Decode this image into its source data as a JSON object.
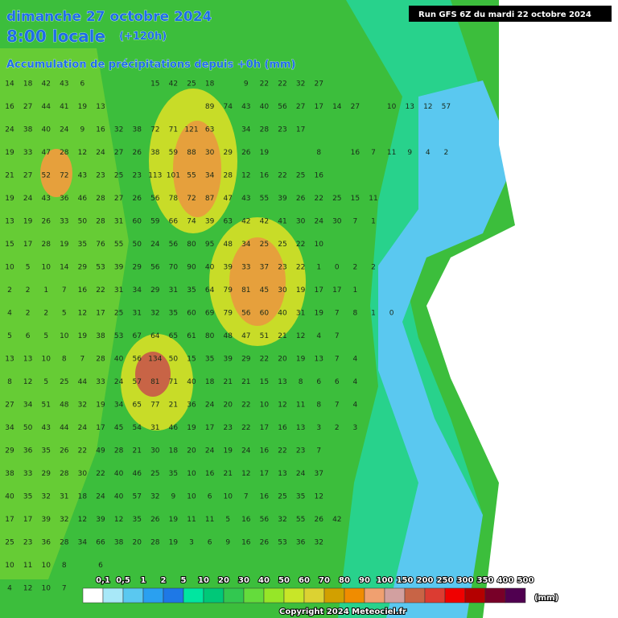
{
  "header": {
    "date": "dimanche 27 octobre 2024",
    "time": "8:00 locale",
    "lead": "(+120h)",
    "subtitle": "Accumulation de précipitations depuis +0h (mm)",
    "run": "Run GFS 6Z du mardi 22 octobre 2024"
  },
  "grid": {
    "rows": [
      [
        14,
        18,
        42,
        43,
        6,
        null,
        null,
        null,
        15,
        42,
        25,
        18,
        null,
        9,
        22,
        22,
        32,
        27
      ],
      [
        16,
        27,
        44,
        41,
        19,
        13,
        null,
        null,
        null,
        null,
        null,
        89,
        74,
        43,
        40,
        56,
        27,
        17,
        14,
        27,
        null,
        10,
        13,
        12,
        57
      ],
      [
        24,
        38,
        40,
        24,
        9,
        16,
        32,
        38,
        72,
        71,
        121,
        63,
        null,
        34,
        28,
        23,
        17
      ],
      [
        19,
        33,
        47,
        28,
        12,
        24,
        27,
        26,
        38,
        59,
        88,
        30,
        29,
        26,
        19,
        null,
        null,
        8,
        null,
        16,
        7,
        11,
        9,
        4,
        2
      ],
      [
        21,
        27,
        52,
        72,
        43,
        23,
        25,
        23,
        113,
        101,
        55,
        34,
        28,
        12,
        16,
        22,
        25,
        16
      ],
      [
        19,
        24,
        43,
        36,
        46,
        28,
        27,
        26,
        56,
        78,
        72,
        87,
        47,
        43,
        55,
        39,
        26,
        22,
        25,
        15,
        11
      ],
      [
        13,
        19,
        26,
        33,
        50,
        28,
        31,
        60,
        59,
        66,
        74,
        39,
        63,
        42,
        42,
        41,
        30,
        24,
        30,
        7,
        1
      ],
      [
        15,
        17,
        28,
        19,
        35,
        76,
        55,
        50,
        24,
        56,
        80,
        95,
        48,
        34,
        25,
        25,
        22,
        10
      ],
      [
        10,
        5,
        10,
        14,
        29,
        53,
        39,
        29,
        56,
        70,
        90,
        40,
        39,
        33,
        37,
        23,
        22,
        1,
        0,
        2,
        2
      ],
      [
        2,
        2,
        1,
        7,
        16,
        22,
        31,
        34,
        29,
        31,
        35,
        64,
        79,
        81,
        45,
        30,
        19,
        17,
        17,
        1
      ],
      [
        4,
        2,
        2,
        5,
        12,
        17,
        25,
        31,
        32,
        35,
        60,
        69,
        79,
        56,
        60,
        40,
        31,
        19,
        7,
        8,
        1,
        0
      ],
      [
        5,
        6,
        5,
        10,
        19,
        38,
        53,
        67,
        64,
        65,
        61,
        80,
        48,
        47,
        51,
        21,
        12,
        4,
        7
      ],
      [
        13,
        13,
        10,
        8,
        7,
        28,
        40,
        56,
        134,
        50,
        15,
        35,
        39,
        29,
        22,
        20,
        19,
        13,
        7,
        4
      ],
      [
        8,
        12,
        5,
        25,
        44,
        33,
        24,
        57,
        81,
        71,
        40,
        18,
        21,
        21,
        15,
        13,
        8,
        6,
        6,
        4
      ],
      [
        27,
        34,
        51,
        48,
        32,
        19,
        34,
        65,
        77,
        21,
        36,
        24,
        20,
        22,
        10,
        12,
        11,
        8,
        7,
        4
      ],
      [
        34,
        50,
        43,
        44,
        24,
        17,
        45,
        54,
        31,
        46,
        19,
        17,
        23,
        22,
        17,
        16,
        13,
        3,
        2,
        3
      ],
      [
        29,
        36,
        35,
        26,
        22,
        49,
        28,
        21,
        30,
        18,
        20,
        24,
        19,
        24,
        16,
        22,
        23,
        7
      ],
      [
        38,
        33,
        29,
        28,
        30,
        22,
        40,
        46,
        25,
        35,
        10,
        16,
        21,
        12,
        17,
        13,
        24,
        37
      ],
      [
        40,
        35,
        32,
        31,
        18,
        24,
        40,
        57,
        32,
        9,
        10,
        6,
        10,
        7,
        16,
        25,
        35,
        12
      ],
      [
        17,
        17,
        39,
        32,
        12,
        39,
        12,
        35,
        26,
        19,
        11,
        11,
        5,
        16,
        56,
        32,
        55,
        26,
        42
      ],
      [
        25,
        23,
        36,
        28,
        34,
        66,
        38,
        20,
        28,
        19,
        3,
        6,
        9,
        16,
        26,
        53,
        36,
        32
      ],
      [
        10,
        11,
        10,
        8,
        null,
        6
      ],
      [
        4,
        12,
        10,
        7
      ]
    ]
  },
  "legend": {
    "unit": "(mm)",
    "items": [
      {
        "label": "0,1",
        "color": "#ffffff"
      },
      {
        "label": "0,5",
        "color": "#a8e8f8"
      },
      {
        "label": "1",
        "color": "#5ac8f0"
      },
      {
        "label": "2",
        "color": "#2aa0f0"
      },
      {
        "label": "5",
        "color": "#1e78e6"
      },
      {
        "label": "10",
        "color": "#00e6a0"
      },
      {
        "label": "20",
        "color": "#00c878"
      },
      {
        "label": "30",
        "color": "#32c850"
      },
      {
        "label": "40",
        "color": "#64dc3c"
      },
      {
        "label": "50",
        "color": "#96e628"
      },
      {
        "label": "60",
        "color": "#c8e628"
      },
      {
        "label": "70",
        "color": "#dcd232"
      },
      {
        "label": "80",
        "color": "#d2a000"
      },
      {
        "label": "90",
        "color": "#f08c00"
      },
      {
        "label": "100",
        "color": "#f0a070"
      },
      {
        "label": "150",
        "color": "#d2a0a0"
      },
      {
        "label": "200",
        "color": "#c86446"
      },
      {
        "label": "250",
        "color": "#dc3c32"
      },
      {
        "label": "300",
        "color": "#f00000"
      },
      {
        "label": "350",
        "color": "#b40000"
      },
      {
        "label": "400",
        "color": "#780028"
      },
      {
        "label": "500",
        "color": "#500050"
      }
    ]
  },
  "footer": {
    "copyright": "Copyright 2024 Meteociel.fr"
  }
}
